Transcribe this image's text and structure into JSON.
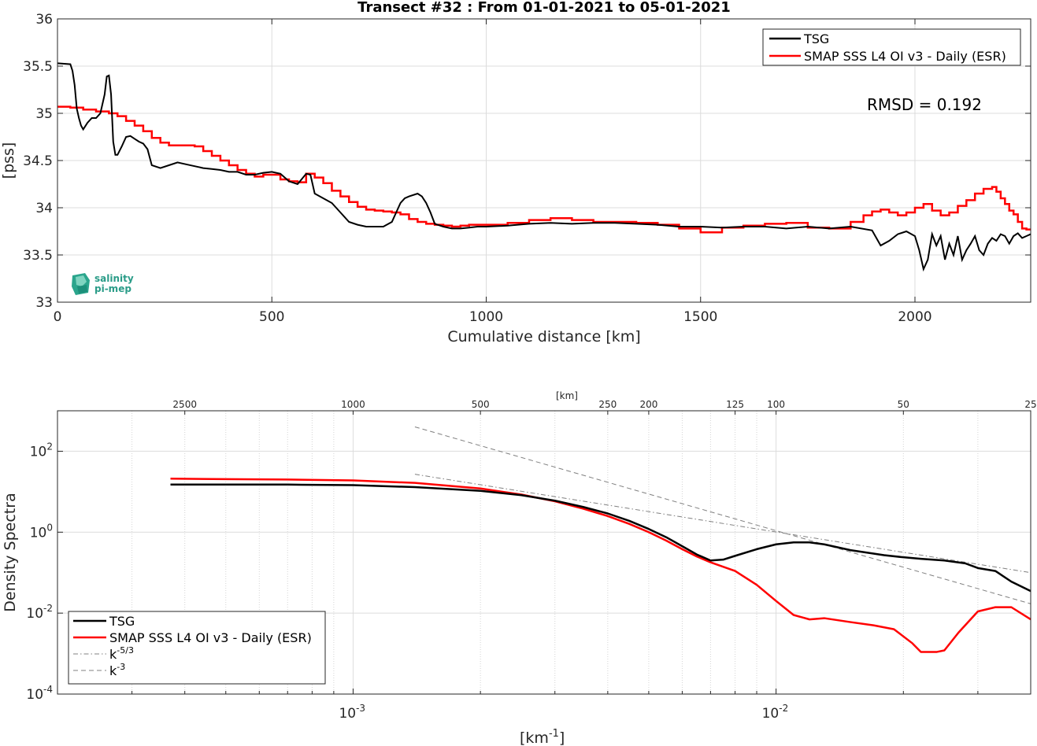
{
  "figure": {
    "title": "Transect #32 : From 01-01-2021 to 05-01-2021"
  },
  "top_panel": {
    "ylabel": "[pss]",
    "xlabel": "Cumulative distance [km]",
    "annotation": "RMSD = 0.192",
    "logo_text": [
      "salinity",
      "pi-mep"
    ],
    "legend": [
      "TSG",
      "SMAP SSS L4 OI v3 - Daily (ESR)"
    ],
    "xticks": [
      "0",
      "500",
      "1000",
      "1500",
      "2000"
    ],
    "yticks": [
      "33",
      "33.5",
      "34",
      "34.5",
      "35",
      "35.5",
      "36"
    ]
  },
  "bottom_panel": {
    "ylabel": "Density Spectra",
    "xlabel": "[km",
    "xlabel_sup": "-1",
    "xlabel_tail": "]",
    "top_axis_label": "[km]",
    "top_ticks": [
      "2500",
      "1000",
      "500",
      "250",
      "200",
      "125",
      "100",
      "50",
      "25"
    ],
    "xticks": [
      {
        "base": "10",
        "exp": "-3"
      },
      {
        "base": "10",
        "exp": "-2"
      }
    ],
    "yticks": [
      {
        "base": "10",
        "exp": "2"
      },
      {
        "base": "10",
        "exp": "0"
      },
      {
        "base": "10",
        "exp": "-2"
      },
      {
        "base": "10",
        "exp": "-4"
      }
    ],
    "legend": [
      {
        "label": "TSG",
        "sup": ""
      },
      {
        "label": "SMAP SSS L4 OI v3 - Daily (ESR)",
        "sup": ""
      },
      {
        "label": "k",
        "sup": "-5/3"
      },
      {
        "label": "k",
        "sup": "-3"
      }
    ]
  },
  "colors": {
    "tsg": "#000000",
    "smap": "#ff0000",
    "ref": "#808080"
  },
  "chart_data": [
    {
      "type": "line",
      "title": "Transect #32 : From 01-01-2021 to 05-01-2021",
      "xlabel": "Cumulative distance [km]",
      "ylabel": "[pss]",
      "xlim": [
        0,
        2270
      ],
      "ylim": [
        33,
        36
      ],
      "grid": true,
      "legend_position": "top-right",
      "series": [
        {
          "name": "TSG",
          "x": [
            0,
            30,
            35,
            40,
            45,
            50,
            55,
            60,
            70,
            80,
            90,
            100,
            110,
            115,
            120,
            125,
            130,
            135,
            140,
            150,
            160,
            170,
            180,
            190,
            200,
            210,
            220,
            240,
            260,
            280,
            300,
            320,
            340,
            360,
            380,
            400,
            420,
            440,
            460,
            480,
            500,
            520,
            540,
            560,
            580,
            590,
            600,
            620,
            640,
            660,
            680,
            700,
            720,
            740,
            760,
            780,
            800,
            810,
            820,
            840,
            850,
            860,
            870,
            880,
            900,
            920,
            940,
            960,
            980,
            1000,
            1050,
            1100,
            1150,
            1200,
            1250,
            1300,
            1350,
            1400,
            1450,
            1500,
            1550,
            1600,
            1650,
            1700,
            1750,
            1800,
            1850,
            1900,
            1920,
            1940,
            1960,
            1980,
            2000,
            2010,
            2020,
            2030,
            2040,
            2050,
            2060,
            2070,
            2080,
            2090,
            2100,
            2110,
            2120,
            2130,
            2140,
            2150,
            2160,
            2170,
            2180,
            2190,
            2200,
            2210,
            2220,
            2230,
            2240,
            2250,
            2260,
            2270
          ],
          "y": [
            35.53,
            35.52,
            35.45,
            35.3,
            35.05,
            34.95,
            34.87,
            34.83,
            34.9,
            34.95,
            34.95,
            35.0,
            35.2,
            35.39,
            35.4,
            35.2,
            34.7,
            34.56,
            34.56,
            34.65,
            34.75,
            34.76,
            34.73,
            34.7,
            34.68,
            34.62,
            34.45,
            34.42,
            34.45,
            34.48,
            34.46,
            34.44,
            34.42,
            34.41,
            34.4,
            34.38,
            34.38,
            34.35,
            34.35,
            34.37,
            34.38,
            34.36,
            34.28,
            34.25,
            34.36,
            34.35,
            34.15,
            34.1,
            34.05,
            33.95,
            33.85,
            33.82,
            33.8,
            33.8,
            33.8,
            33.85,
            34.05,
            34.1,
            34.12,
            34.15,
            34.12,
            34.05,
            33.95,
            33.83,
            33.8,
            33.78,
            33.78,
            33.79,
            33.8,
            33.8,
            33.81,
            33.83,
            33.84,
            33.83,
            33.84,
            33.84,
            33.83,
            33.82,
            33.8,
            33.8,
            33.79,
            33.8,
            33.8,
            33.78,
            33.8,
            33.78,
            33.8,
            33.76,
            33.6,
            33.65,
            33.72,
            33.75,
            33.7,
            33.55,
            33.35,
            33.45,
            33.72,
            33.6,
            33.7,
            33.45,
            33.62,
            33.5,
            33.7,
            33.45,
            33.55,
            33.62,
            33.7,
            33.55,
            33.5,
            33.62,
            33.68,
            33.65,
            33.72,
            33.7,
            33.62,
            33.7,
            33.73,
            33.68,
            33.7,
            33.72
          ]
        },
        {
          "name": "SMAP SSS L4 OI v3 - Daily (ESR)",
          "x": [
            0,
            30,
            60,
            90,
            120,
            140,
            160,
            180,
            200,
            220,
            240,
            260,
            280,
            300,
            320,
            340,
            360,
            380,
            400,
            420,
            440,
            460,
            480,
            500,
            520,
            540,
            560,
            580,
            600,
            620,
            640,
            660,
            680,
            700,
            720,
            740,
            760,
            780,
            800,
            820,
            840,
            860,
            880,
            900,
            920,
            940,
            960,
            980,
            1000,
            1050,
            1100,
            1150,
            1200,
            1250,
            1300,
            1350,
            1400,
            1450,
            1500,
            1550,
            1600,
            1650,
            1700,
            1750,
            1800,
            1850,
            1880,
            1900,
            1920,
            1940,
            1960,
            1980,
            2000,
            2020,
            2040,
            2060,
            2080,
            2100,
            2120,
            2140,
            2160,
            2180,
            2190,
            2200,
            2210,
            2220,
            2230,
            2240,
            2250,
            2260,
            2270
          ],
          "y": [
            35.07,
            35.06,
            35.04,
            35.02,
            35.0,
            34.97,
            34.92,
            34.87,
            34.81,
            34.74,
            34.69,
            34.66,
            34.66,
            34.66,
            34.65,
            34.6,
            34.55,
            34.5,
            34.45,
            34.4,
            34.36,
            34.33,
            34.35,
            34.35,
            34.3,
            34.28,
            34.27,
            34.36,
            34.32,
            34.26,
            34.18,
            34.12,
            34.06,
            34.01,
            33.98,
            33.97,
            33.96,
            33.95,
            33.93,
            33.88,
            33.85,
            33.83,
            33.82,
            33.81,
            33.8,
            33.81,
            33.82,
            33.82,
            33.82,
            33.84,
            33.87,
            33.89,
            33.87,
            33.85,
            33.85,
            33.84,
            33.82,
            33.78,
            33.74,
            33.79,
            33.81,
            33.83,
            33.84,
            33.79,
            33.78,
            33.85,
            33.92,
            33.96,
            33.98,
            33.95,
            33.92,
            33.95,
            34.0,
            34.04,
            33.97,
            33.92,
            33.95,
            34.02,
            34.08,
            34.15,
            34.2,
            34.22,
            34.17,
            34.1,
            34.04,
            33.97,
            33.93,
            33.85,
            33.78,
            33.77,
            33.77
          ]
        }
      ]
    },
    {
      "type": "line",
      "xlabel": "[km-1]",
      "ylabel": "Density Spectra",
      "x_scale": "log",
      "y_scale": "log",
      "xlim": [
        0.0002,
        0.04
      ],
      "ylim": [
        0.0001,
        1000
      ],
      "grid": true,
      "legend_position": "bottom-left",
      "series": [
        {
          "name": "TSG",
          "x": [
            0.00037,
            0.0005,
            0.0007,
            0.001,
            0.0014,
            0.002,
            0.0025,
            0.003,
            0.0035,
            0.004,
            0.0045,
            0.005,
            0.0055,
            0.006,
            0.0065,
            0.007,
            0.0075,
            0.008,
            0.009,
            0.01,
            0.011,
            0.012,
            0.013,
            0.015,
            0.018,
            0.02,
            0.022,
            0.025,
            0.028,
            0.03,
            0.033,
            0.036,
            0.04
          ],
          "y": [
            15,
            15,
            15,
            14.5,
            13,
            10.5,
            8.2,
            6,
            4.2,
            2.9,
            1.9,
            1.2,
            0.75,
            0.45,
            0.28,
            0.2,
            0.21,
            0.26,
            0.38,
            0.5,
            0.56,
            0.56,
            0.5,
            0.36,
            0.27,
            0.24,
            0.22,
            0.2,
            0.17,
            0.13,
            0.11,
            0.06,
            0.035
          ]
        },
        {
          "name": "SMAP SSS L4 OI v3 - Daily (ESR)",
          "x": [
            0.00037,
            0.0005,
            0.0007,
            0.001,
            0.0014,
            0.002,
            0.0025,
            0.003,
            0.0035,
            0.004,
            0.0045,
            0.005,
            0.0055,
            0.006,
            0.0065,
            0.007,
            0.008,
            0.009,
            0.01,
            0.011,
            0.012,
            0.013,
            0.015,
            0.017,
            0.019,
            0.021,
            0.022,
            0.023,
            0.024,
            0.025,
            0.027,
            0.03,
            0.033,
            0.036,
            0.04
          ],
          "y": [
            21,
            20.5,
            20,
            19,
            16.5,
            12,
            8.5,
            5.8,
            3.8,
            2.5,
            1.6,
            1.0,
            0.62,
            0.38,
            0.25,
            0.18,
            0.11,
            0.05,
            0.02,
            0.009,
            0.007,
            0.0075,
            0.006,
            0.005,
            0.004,
            0.0018,
            0.0011,
            0.0011,
            0.0011,
            0.0012,
            0.0033,
            0.011,
            0.014,
            0.014,
            0.007
          ]
        },
        {
          "name": "k-5/3",
          "x": [
            0.0014,
            0.04
          ],
          "y": [
            27,
            0.1
          ]
        },
        {
          "name": "k-3",
          "x": [
            0.0014,
            0.04
          ],
          "y": [
            400,
            0.017
          ]
        }
      ]
    }
  ]
}
